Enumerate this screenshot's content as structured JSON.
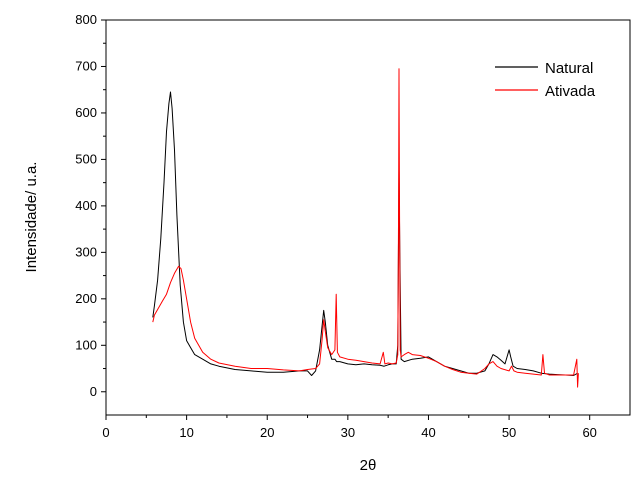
{
  "chart_data": {
    "type": "line",
    "title": "",
    "xlabel": "2θ",
    "ylabel": "Intensidade/ u.a.",
    "xlim": [
      0,
      65
    ],
    "ylim": [
      -50,
      800
    ],
    "xticks": [
      0,
      10,
      20,
      30,
      40,
      50,
      60
    ],
    "yticks": [
      0,
      100,
      200,
      300,
      400,
      500,
      600,
      700,
      800
    ],
    "grid": false,
    "legend_position": "top-right",
    "series": [
      {
        "name": "Natural",
        "color": "#000000",
        "x": [
          5.8,
          6.0,
          6.4,
          6.8,
          7.2,
          7.5,
          7.8,
          8.0,
          8.2,
          8.5,
          8.8,
          9.2,
          9.6,
          10.0,
          10.5,
          11.0,
          12.0,
          13.0,
          14.0,
          16.0,
          18.0,
          20.0,
          22.0,
          24.0,
          25.0,
          25.5,
          26.0,
          26.5,
          26.8,
          27.0,
          27.2,
          27.5,
          28.0,
          28.4,
          28.6,
          29.0,
          30.0,
          31.0,
          32.0,
          33.0,
          34.0,
          34.5,
          35.0,
          35.5,
          36.0,
          36.2,
          36.35,
          36.45,
          36.6,
          37.0,
          38.0,
          39.0,
          40.0,
          41.0,
          42.0,
          43.0,
          44.0,
          45.0,
          46.0,
          47.0,
          47.5,
          48.0,
          48.5,
          49.0,
          49.5,
          50.0,
          50.2,
          50.5,
          51.0,
          52.0,
          53.0,
          54.0,
          55.0,
          56.0,
          57.0,
          58.0,
          58.5
        ],
        "y": [
          160,
          185,
          240,
          330,
          450,
          560,
          620,
          645,
          610,
          520,
          380,
          230,
          150,
          110,
          95,
          80,
          70,
          60,
          55,
          48,
          45,
          42,
          42,
          45,
          45,
          35,
          45,
          90,
          140,
          175,
          150,
          100,
          70,
          70,
          65,
          65,
          60,
          58,
          60,
          58,
          57,
          55,
          58,
          60,
          60,
          100,
          480,
          300,
          70,
          65,
          70,
          72,
          75,
          65,
          55,
          50,
          45,
          40,
          40,
          45,
          60,
          80,
          75,
          68,
          60,
          90,
          75,
          55,
          50,
          48,
          45,
          40,
          38,
          37,
          36,
          35,
          40
        ]
      },
      {
        "name": "Ativada",
        "color": "#ff0000",
        "x": [
          5.8,
          6.0,
          6.5,
          7.0,
          7.5,
          8.0,
          8.5,
          9.0,
          9.3,
          9.6,
          10.0,
          10.5,
          11.0,
          12.0,
          13.0,
          14.0,
          16.0,
          18.0,
          20.0,
          22.0,
          24.0,
          25.0,
          26.0,
          26.5,
          26.8,
          27.0,
          27.2,
          27.5,
          28.0,
          28.4,
          28.55,
          28.7,
          29.0,
          30.0,
          31.0,
          32.0,
          33.0,
          34.0,
          34.4,
          34.6,
          35.0,
          35.5,
          36.0,
          36.2,
          36.3,
          36.35,
          36.4,
          36.5,
          36.6,
          37.0,
          37.5,
          38.0,
          39.0,
          40.0,
          41.0,
          42.0,
          43.0,
          44.0,
          45.0,
          46.0,
          47.0,
          47.5,
          48.0,
          48.5,
          49.0,
          50.0,
          50.3,
          50.6,
          51.0,
          52.0,
          53.0,
          54.0,
          54.2,
          54.4,
          55.0,
          56.0,
          57.0,
          58.0,
          58.4,
          58.5,
          58.6
        ],
        "y": [
          150,
          165,
          180,
          195,
          210,
          235,
          255,
          270,
          265,
          240,
          200,
          150,
          115,
          85,
          70,
          62,
          55,
          50,
          50,
          47,
          45,
          48,
          50,
          60,
          110,
          155,
          130,
          95,
          80,
          90,
          210,
          85,
          75,
          70,
          68,
          65,
          62,
          60,
          85,
          60,
          62,
          60,
          62,
          80,
          400,
          695,
          450,
          90,
          75,
          80,
          85,
          80,
          78,
          72,
          65,
          55,
          48,
          42,
          40,
          38,
          50,
          60,
          65,
          55,
          50,
          45,
          55,
          45,
          42,
          40,
          38,
          36,
          80,
          40,
          36,
          36,
          36,
          36,
          70,
          10,
          40
        ]
      }
    ]
  }
}
